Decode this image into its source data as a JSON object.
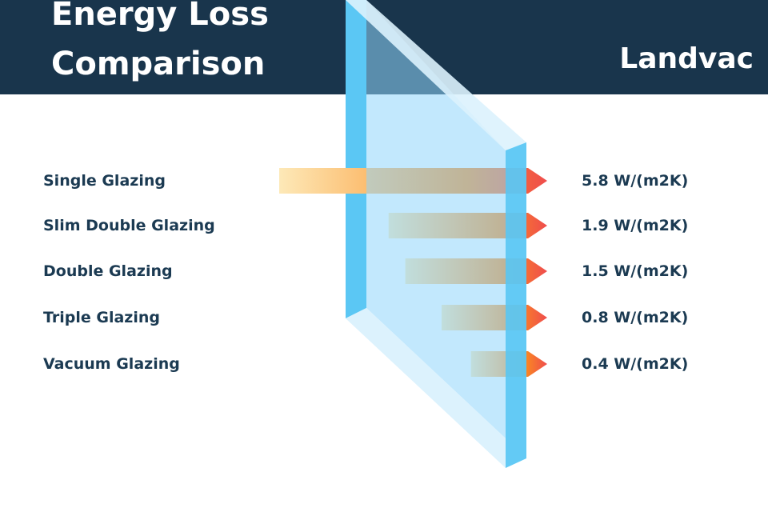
{
  "header": {
    "title_line1": "Energy Loss",
    "title_line2": "Comparison",
    "brand": "Landvac"
  },
  "colors": {
    "header_bg": "#19354c",
    "text_dark": "#1b3a52",
    "glass_face": "#8fd6fb",
    "glass_edge": "#5bc7f4",
    "glass_top": "#dcf2fd",
    "arrow_start": "#fde9b8",
    "arrow_mid": "#fb8c1f",
    "arrow_end": "#ef4d4d"
  },
  "chart_data": {
    "type": "bar",
    "unit": "W/(m2K)",
    "categories": [
      "Single Glazing",
      "Slim Double Glazing",
      "Double Glazing",
      "Triple Glazing",
      "Vacuum Glazing"
    ],
    "values": [
      5.8,
      1.9,
      1.5,
      0.8,
      0.4
    ],
    "value_labels": [
      "5.8 W/(m2K)",
      "1.9 W/(m2K)",
      "1.5 W/(m2K)",
      "0.8 W/(m2K)",
      "0.4 W/(m2K)"
    ]
  }
}
